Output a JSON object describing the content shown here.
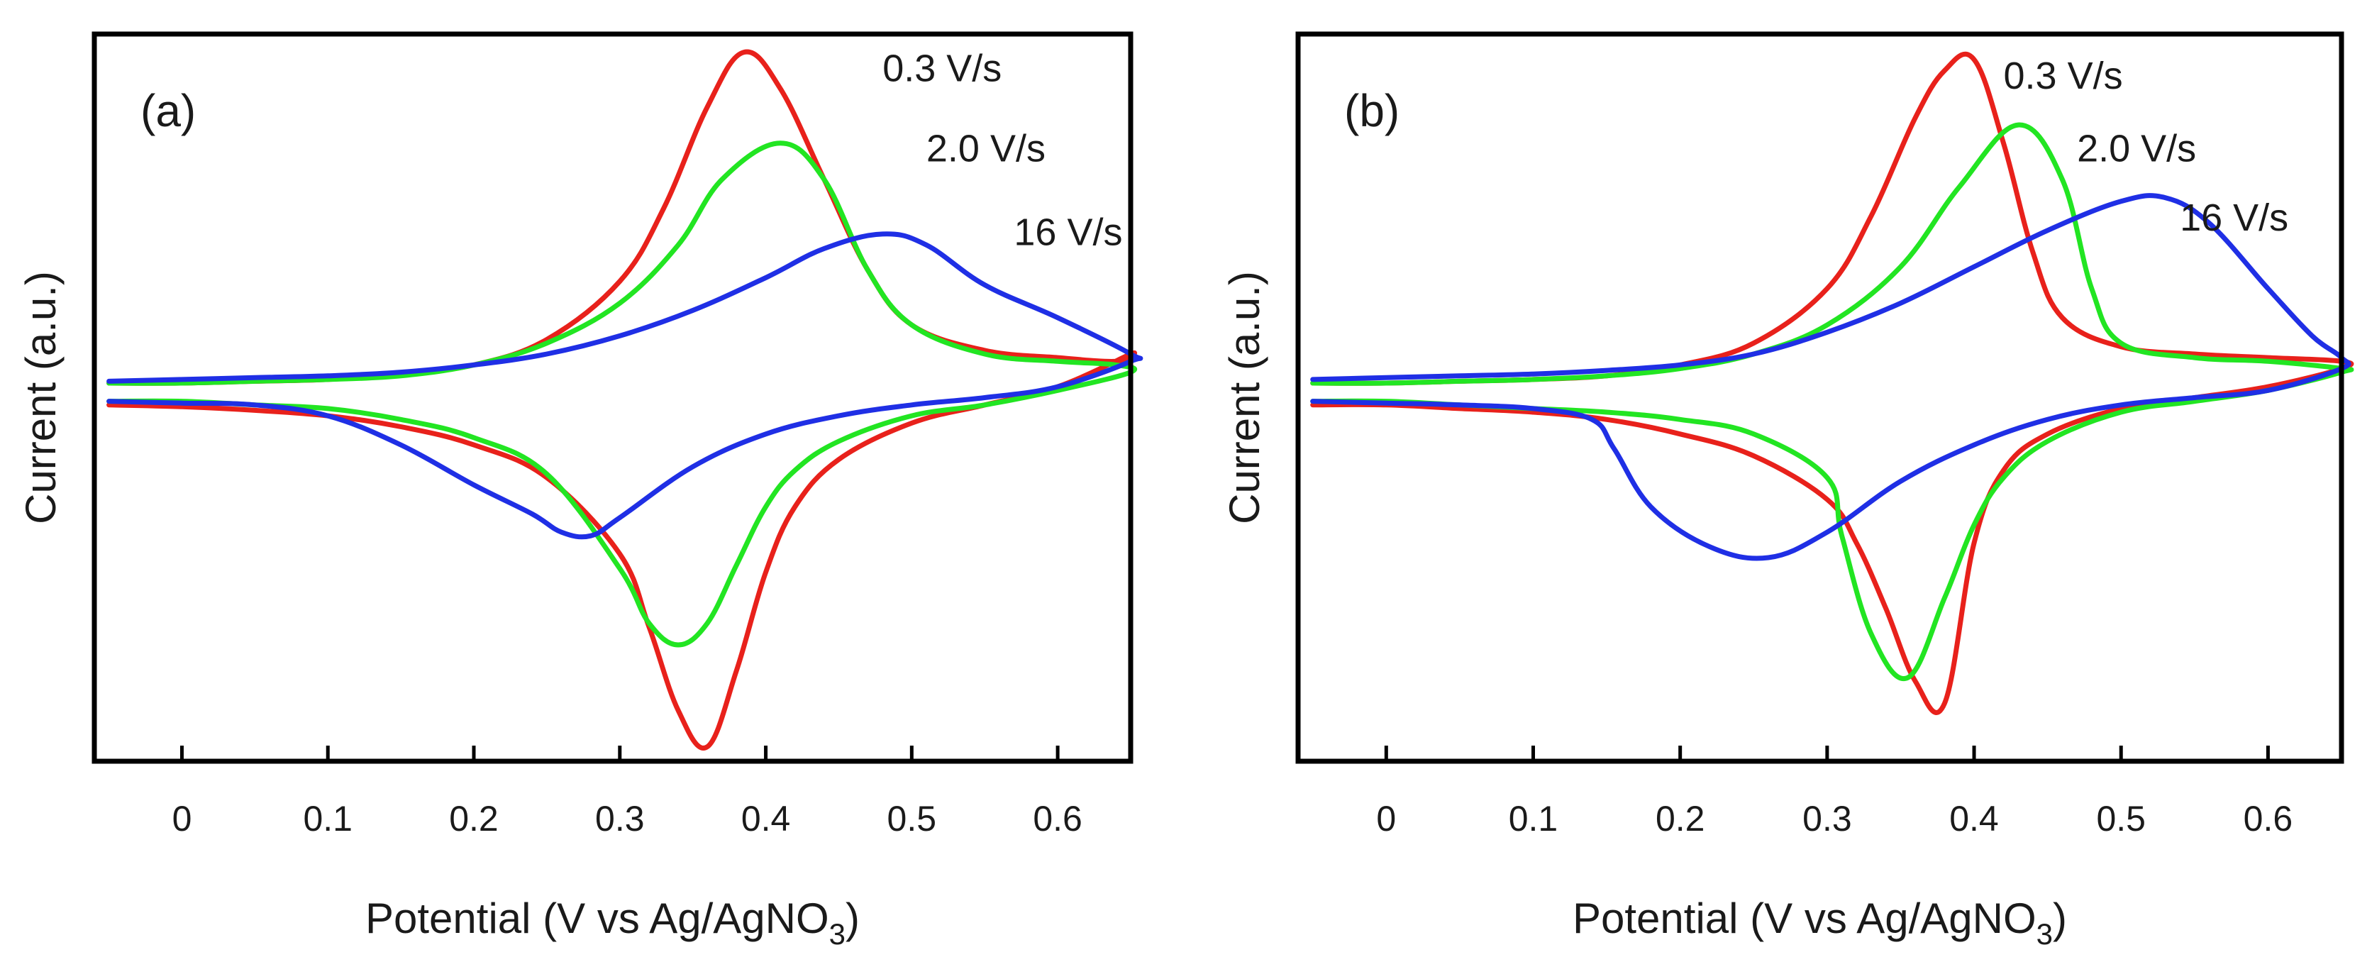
{
  "chart_data": [
    {
      "type": "line",
      "panel_label": "(a)",
      "xlabel_main": "Potential (V vs Ag/AgNO",
      "xlabel_sub": "3",
      "xlabel_tail": ")",
      "ylabel": "Current (a.u.)",
      "xlim": [
        -0.06,
        0.65
      ],
      "ylim": [
        -1.0,
        1.0
      ],
      "xticks": [
        0,
        0.1,
        0.2,
        0.3,
        0.4,
        0.5,
        0.6
      ],
      "xtick_labels": [
        "0",
        "0.1",
        "0.2",
        "0.3",
        "0.4",
        "0.5",
        "0.6"
      ],
      "yticks_shown": false,
      "series": [
        {
          "name": "0.3 V/s",
          "color": "#e8211b",
          "label_anchor": [
            0.48,
            0.87
          ],
          "forward": {
            "x": [
              -0.05,
              0.0,
              0.05,
              0.1,
              0.15,
              0.2,
              0.25,
              0.3,
              0.33,
              0.36,
              0.385,
              0.41,
              0.44,
              0.47,
              0.5,
              0.55,
              0.6,
              0.64
            ],
            "y": [
              0.04,
              0.04,
              0.045,
              0.05,
              0.065,
              0.09,
              0.16,
              0.32,
              0.52,
              0.8,
              0.95,
              0.85,
              0.6,
              0.35,
              0.2,
              0.13,
              0.11,
              0.1
            ]
          },
          "reverse": {
            "x": [
              0.65,
              0.6,
              0.55,
              0.5,
              0.45,
              0.42,
              0.4,
              0.38,
              0.36,
              0.34,
              0.32,
              0.3,
              0.25,
              0.2,
              0.15,
              0.1,
              0.05,
              0.0,
              -0.05
            ],
            "y": [
              0.12,
              0.03,
              -0.02,
              -0.07,
              -0.17,
              -0.3,
              -0.48,
              -0.75,
              -0.96,
              -0.86,
              -0.63,
              -0.43,
              -0.22,
              -0.13,
              -0.08,
              -0.05,
              -0.035,
              -0.025,
              -0.02
            ]
          }
        },
        {
          "name": "2.0 V/s",
          "color": "#22e522",
          "label_anchor": [
            0.51,
            0.65
          ],
          "forward": {
            "x": [
              -0.05,
              0.0,
              0.05,
              0.1,
              0.15,
              0.2,
              0.25,
              0.3,
              0.34,
              0.37,
              0.41,
              0.44,
              0.47,
              0.5,
              0.55,
              0.6,
              0.64
            ],
            "y": [
              0.04,
              0.04,
              0.045,
              0.05,
              0.06,
              0.09,
              0.15,
              0.26,
              0.42,
              0.6,
              0.7,
              0.6,
              0.35,
              0.2,
              0.12,
              0.1,
              0.09
            ]
          },
          "reverse": {
            "x": [
              0.65,
              0.6,
              0.55,
              0.5,
              0.45,
              0.42,
              0.4,
              0.38,
              0.36,
              0.34,
              0.32,
              0.3,
              0.25,
              0.2,
              0.15,
              0.1,
              0.05,
              0.0,
              -0.05
            ],
            "y": [
              0.07,
              0.02,
              -0.02,
              -0.05,
              -0.12,
              -0.2,
              -0.3,
              -0.46,
              -0.62,
              -0.68,
              -0.62,
              -0.47,
              -0.21,
              -0.11,
              -0.06,
              -0.03,
              -0.02,
              -0.01,
              -0.01
            ]
          }
        },
        {
          "name": "16 V/s",
          "color": "#1f2fe5",
          "label_anchor": [
            0.57,
            0.42
          ],
          "forward": {
            "x": [
              -0.05,
              0.0,
              0.05,
              0.1,
              0.15,
              0.2,
              0.25,
              0.3,
              0.35,
              0.4,
              0.44,
              0.48,
              0.51,
              0.55,
              0.6,
              0.65
            ],
            "y": [
              0.045,
              0.05,
              0.055,
              0.06,
              0.07,
              0.09,
              0.12,
              0.17,
              0.24,
              0.33,
              0.41,
              0.45,
              0.42,
              0.31,
              0.22,
              0.12
            ]
          },
          "reverse": {
            "x": [
              0.65,
              0.6,
              0.55,
              0.5,
              0.45,
              0.4,
              0.35,
              0.3,
              0.28,
              0.26,
              0.24,
              0.2,
              0.15,
              0.1,
              0.05,
              0.0,
              -0.05
            ],
            "y": [
              0.1,
              0.03,
              0.0,
              -0.02,
              -0.05,
              -0.1,
              -0.19,
              -0.33,
              -0.38,
              -0.37,
              -0.32,
              -0.24,
              -0.13,
              -0.05,
              -0.02,
              -0.015,
              -0.01
            ]
          }
        }
      ]
    },
    {
      "type": "line",
      "panel_label": "(b)",
      "xlabel_main": "Potential (V vs Ag/AgNO",
      "xlabel_sub": "3",
      "xlabel_tail": ")",
      "ylabel": "Current (a.u.)",
      "xlim": [
        -0.06,
        0.65
      ],
      "ylim": [
        -1.0,
        1.0
      ],
      "xticks": [
        0,
        0.1,
        0.2,
        0.3,
        0.4,
        0.5,
        0.6
      ],
      "xtick_labels": [
        "0",
        "0.1",
        "0.2",
        "0.3",
        "0.4",
        "0.5",
        "0.6"
      ],
      "yticks_shown": false,
      "series": [
        {
          "name": "0.3 V/s",
          "color": "#e8211b",
          "label_anchor": [
            0.42,
            0.85
          ],
          "forward": {
            "x": [
              -0.05,
              0.0,
              0.05,
              0.1,
              0.15,
              0.2,
              0.25,
              0.3,
              0.33,
              0.36,
              0.38,
              0.4,
              0.42,
              0.44,
              0.46,
              0.5,
              0.55,
              0.6,
              0.65
            ],
            "y": [
              0.04,
              0.04,
              0.045,
              0.05,
              0.06,
              0.09,
              0.15,
              0.3,
              0.5,
              0.77,
              0.9,
              0.93,
              0.7,
              0.4,
              0.22,
              0.14,
              0.12,
              0.11,
              0.1
            ]
          },
          "reverse": {
            "x": [
              0.65,
              0.6,
              0.55,
              0.5,
              0.45,
              0.42,
              0.4,
              0.38,
              0.36,
              0.34,
              0.32,
              0.3,
              0.25,
              0.2,
              0.15,
              0.1,
              0.05,
              0.0,
              -0.05
            ],
            "y": [
              0.08,
              0.03,
              0.0,
              -0.03,
              -0.1,
              -0.2,
              -0.4,
              -0.84,
              -0.78,
              -0.58,
              -0.4,
              -0.28,
              -0.16,
              -0.1,
              -0.06,
              -0.04,
              -0.03,
              -0.02,
              -0.02
            ]
          }
        },
        {
          "name": "2.0 V/s",
          "color": "#22e522",
          "label_anchor": [
            0.47,
            0.65
          ],
          "forward": {
            "x": [
              -0.05,
              0.0,
              0.05,
              0.1,
              0.15,
              0.2,
              0.25,
              0.3,
              0.35,
              0.39,
              0.43,
              0.46,
              0.48,
              0.5,
              0.55,
              0.6,
              0.65
            ],
            "y": [
              0.04,
              0.04,
              0.045,
              0.05,
              0.06,
              0.08,
              0.12,
              0.2,
              0.36,
              0.58,
              0.75,
              0.6,
              0.3,
              0.15,
              0.11,
              0.1,
              0.08
            ]
          },
          "reverse": {
            "x": [
              0.65,
              0.6,
              0.55,
              0.5,
              0.45,
              0.42,
              0.4,
              0.38,
              0.355,
              0.33,
              0.31,
              0.3,
              0.25,
              0.2,
              0.15,
              0.1,
              0.05,
              0.0,
              -0.05
            ],
            "y": [
              0.07,
              0.02,
              -0.01,
              -0.04,
              -0.12,
              -0.22,
              -0.35,
              -0.55,
              -0.77,
              -0.65,
              -0.38,
              -0.22,
              -0.1,
              -0.06,
              -0.04,
              -0.03,
              -0.02,
              -0.01,
              -0.01
            ]
          }
        },
        {
          "name": "16 V/s",
          "color": "#1f2fe5",
          "label_anchor": [
            0.54,
            0.46
          ],
          "forward": {
            "x": [
              -0.05,
              0.0,
              0.05,
              0.1,
              0.15,
              0.2,
              0.25,
              0.3,
              0.35,
              0.4,
              0.45,
              0.5,
              0.53,
              0.56,
              0.6,
              0.63,
              0.65
            ],
            "y": [
              0.05,
              0.055,
              0.06,
              0.065,
              0.075,
              0.09,
              0.12,
              0.18,
              0.26,
              0.36,
              0.46,
              0.54,
              0.55,
              0.48,
              0.3,
              0.17,
              0.11
            ]
          },
          "reverse": {
            "x": [
              0.65,
              0.6,
              0.55,
              0.5,
              0.45,
              0.4,
              0.35,
              0.3,
              0.26,
              0.22,
              0.18,
              0.155,
              0.14,
              0.1,
              0.05,
              0.0,
              -0.05
            ],
            "y": [
              0.08,
              0.02,
              0.0,
              -0.02,
              -0.06,
              -0.13,
              -0.23,
              -0.37,
              -0.44,
              -0.41,
              -0.3,
              -0.14,
              -0.06,
              -0.03,
              -0.02,
              -0.015,
              -0.01
            ]
          }
        }
      ]
    }
  ]
}
